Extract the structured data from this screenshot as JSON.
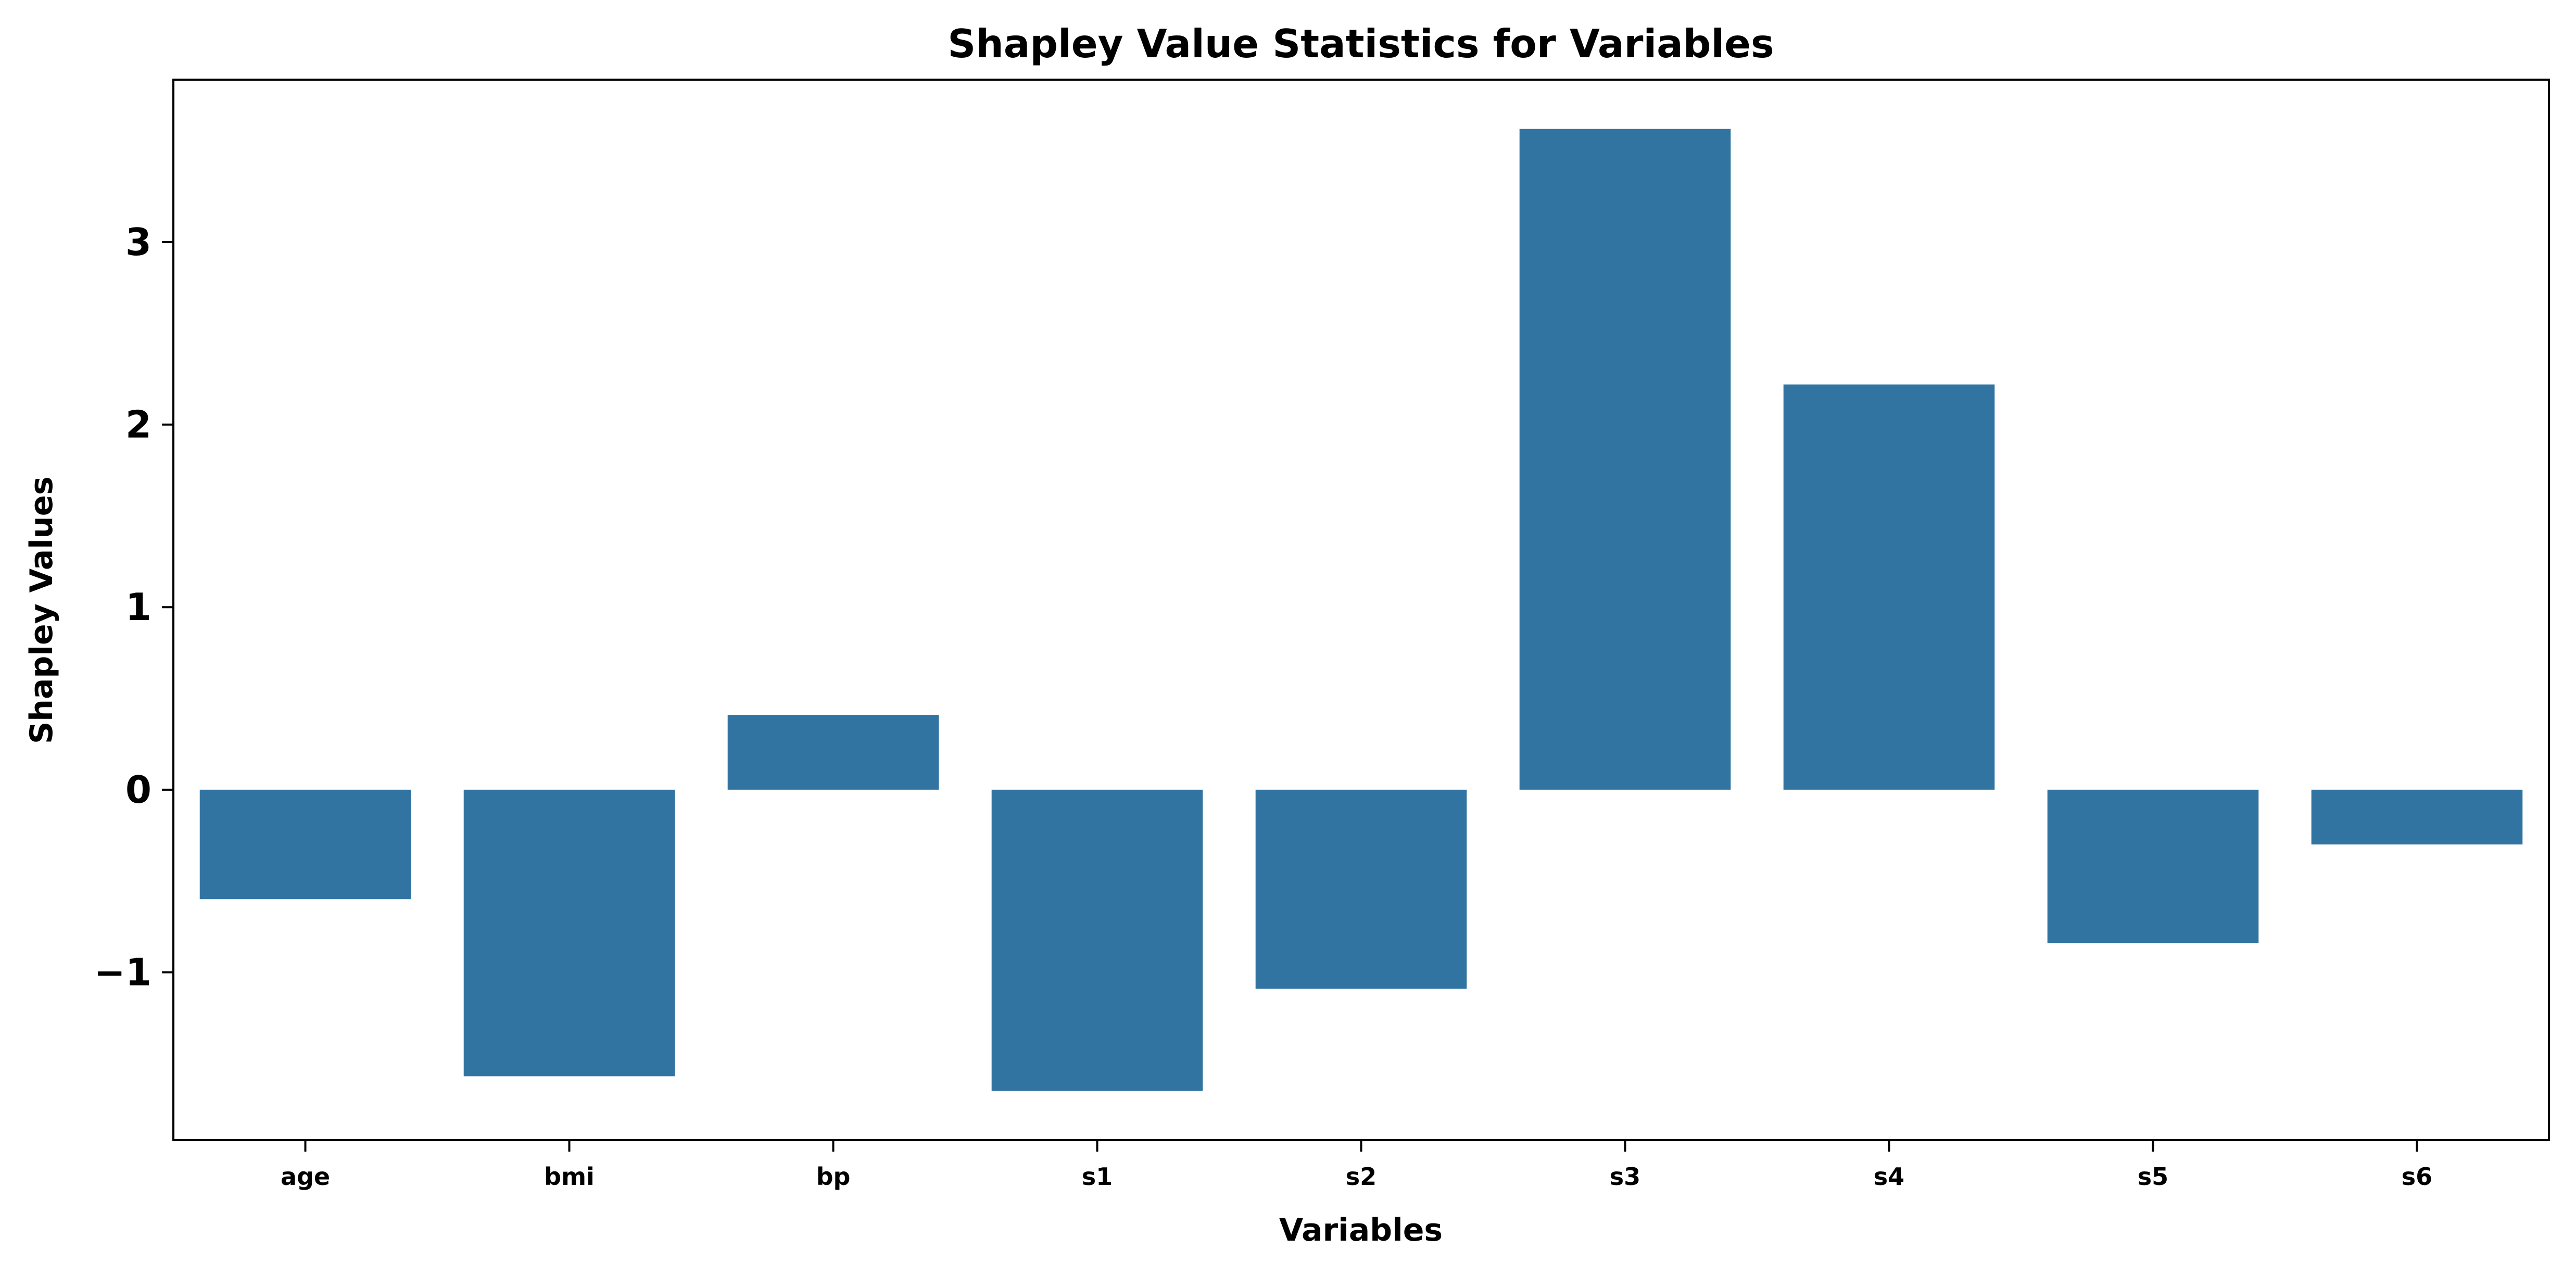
{
  "chart_data": {
    "type": "bar",
    "title": "Shapley Value Statistics for Variables",
    "xlabel": "Variables",
    "ylabel": "Shapley Values",
    "categories": [
      "age",
      "bmi",
      "bp",
      "s1",
      "s2",
      "s3",
      "s4",
      "s5",
      "s6"
    ],
    "values": [
      -0.6,
      -1.57,
      0.41,
      -1.65,
      -1.09,
      3.62,
      2.22,
      -0.84,
      -0.3
    ],
    "ylim": [
      -1.92,
      3.89
    ],
    "yticks": [
      -1,
      0,
      1,
      2,
      3
    ],
    "ytick_labels": [
      "−1",
      "0",
      "1",
      "2",
      "3"
    ],
    "grid": false,
    "bar_color": "#3274a1"
  }
}
